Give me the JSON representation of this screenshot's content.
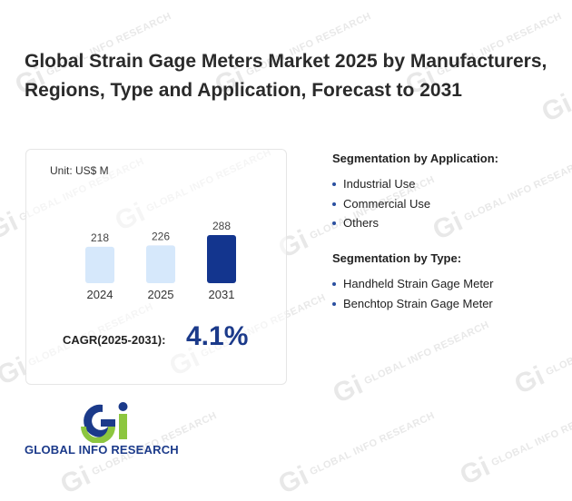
{
  "page": {
    "title": "Global Strain Gage Meters Market 2025 by Manufacturers, Regions, Type and Application, Forecast to 2031"
  },
  "card": {
    "unit": "Unit: US$ M",
    "cagr_label": "CAGR(2025-2031):",
    "cagr_value": "4.1%"
  },
  "chart_data": {
    "type": "bar",
    "categories": [
      "2024",
      "2025",
      "2031"
    ],
    "values": [
      218,
      226,
      288
    ],
    "data_labels": [
      "218",
      "226",
      "288"
    ],
    "title": "",
    "xlabel": "",
    "ylabel": "",
    "unit": "US$ M",
    "ylim": [
      0,
      300
    ],
    "grid": false,
    "colors": [
      "#d6e8fb",
      "#d6e8fb",
      "#13358e"
    ]
  },
  "segments": {
    "application": {
      "title": "Segmentation by Application:",
      "items": [
        "Industrial Use",
        "Commercial Use",
        "Others"
      ]
    },
    "type": {
      "title": "Segmentation by Type:",
      "items": [
        "Handheld Strain Gage Meter",
        "Benchtop Strain Gage Meter"
      ]
    }
  },
  "logo": {
    "text": "GLOBAL INFO RESEARCH",
    "mark": "Gi",
    "colors": {
      "blue": "#1b3a8a",
      "green": "#8cc63f"
    }
  },
  "watermark": {
    "text": "GLOBAL INFO RESEARCH",
    "mark": "Gi"
  }
}
